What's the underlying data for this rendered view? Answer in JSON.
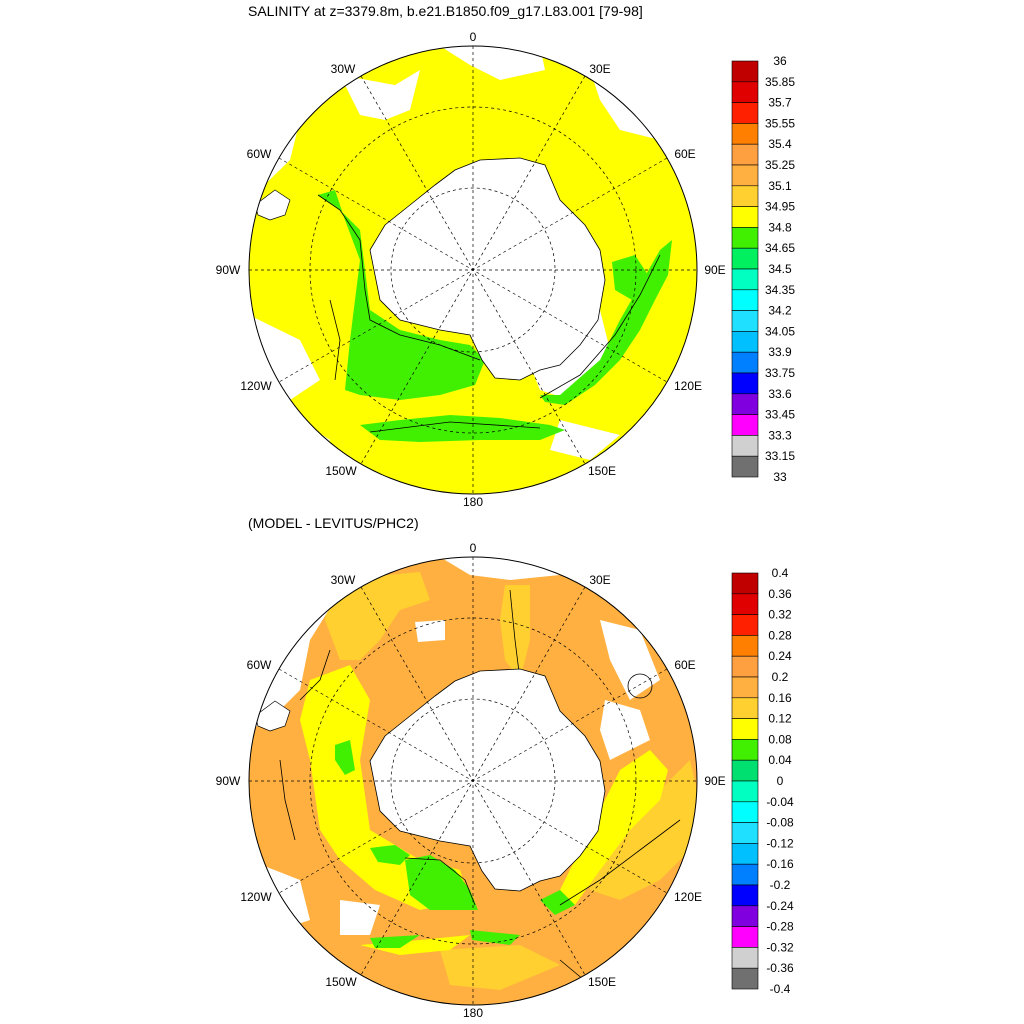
{
  "top_panel": {
    "title": "SALINITY at z=3379.8m, b.e21.B1850.f09_g17.L83.001 [79-98]",
    "lon_labels": {
      "n": "0",
      "ne": "30E",
      "ene": "60E",
      "e": "90E",
      "ese": "120E",
      "sse": "150E",
      "s": "180",
      "ssw": "150W",
      "wsw": "120W",
      "w": "90W",
      "wnw": "60W",
      "nnw": "30W"
    },
    "colorbar": {
      "labels": [
        "36",
        "35.85",
        "35.7",
        "35.55",
        "35.4",
        "35.25",
        "35.1",
        "34.95",
        "34.8",
        "34.65",
        "34.5",
        "34.35",
        "34.2",
        "34.05",
        "33.9",
        "33.75",
        "33.6",
        "33.45",
        "33.3",
        "33.15",
        "33"
      ],
      "colors": [
        "#c00000",
        "#e00000",
        "#ff2000",
        "#ff8000",
        "#ffa040",
        "#ffb040",
        "#ffd030",
        "#ffff00",
        "#40f000",
        "#00f060",
        "#00ffc0",
        "#00ffff",
        "#20e0ff",
        "#00c0ff",
        "#0080ff",
        "#0000ff",
        "#8000e0",
        "#ff00ff",
        "#d0d0d0",
        "#707070"
      ]
    }
  },
  "bottom_panel": {
    "title": "(MODEL - LEVITUS/PHC2)",
    "lon_labels": {
      "n": "0",
      "ne": "30E",
      "ene": "60E",
      "e": "90E",
      "ese": "120E",
      "sse": "150E",
      "s": "180",
      "ssw": "150W",
      "wsw": "120W",
      "w": "90W",
      "wnw": "60W",
      "nnw": "30W"
    },
    "colorbar": {
      "labels": [
        "0.4",
        "0.36",
        "0.32",
        "0.28",
        "0.24",
        "0.2",
        "0.16",
        "0.12",
        "0.08",
        "0.04",
        "0",
        "-0.04",
        "-0.08",
        "-0.12",
        "-0.16",
        "-0.2",
        "-0.24",
        "-0.28",
        "-0.32",
        "-0.36",
        "-0.4"
      ],
      "colors": [
        "#c00000",
        "#e00000",
        "#ff2000",
        "#ff8000",
        "#ffa040",
        "#ffb040",
        "#ffd030",
        "#ffff00",
        "#40f000",
        "#00e070",
        "#00ffc0",
        "#00ffff",
        "#20e0ff",
        "#00c0ff",
        "#0080ff",
        "#0000ff",
        "#8000e0",
        "#ff00ff",
        "#d0d0d0",
        "#707070"
      ]
    }
  }
}
